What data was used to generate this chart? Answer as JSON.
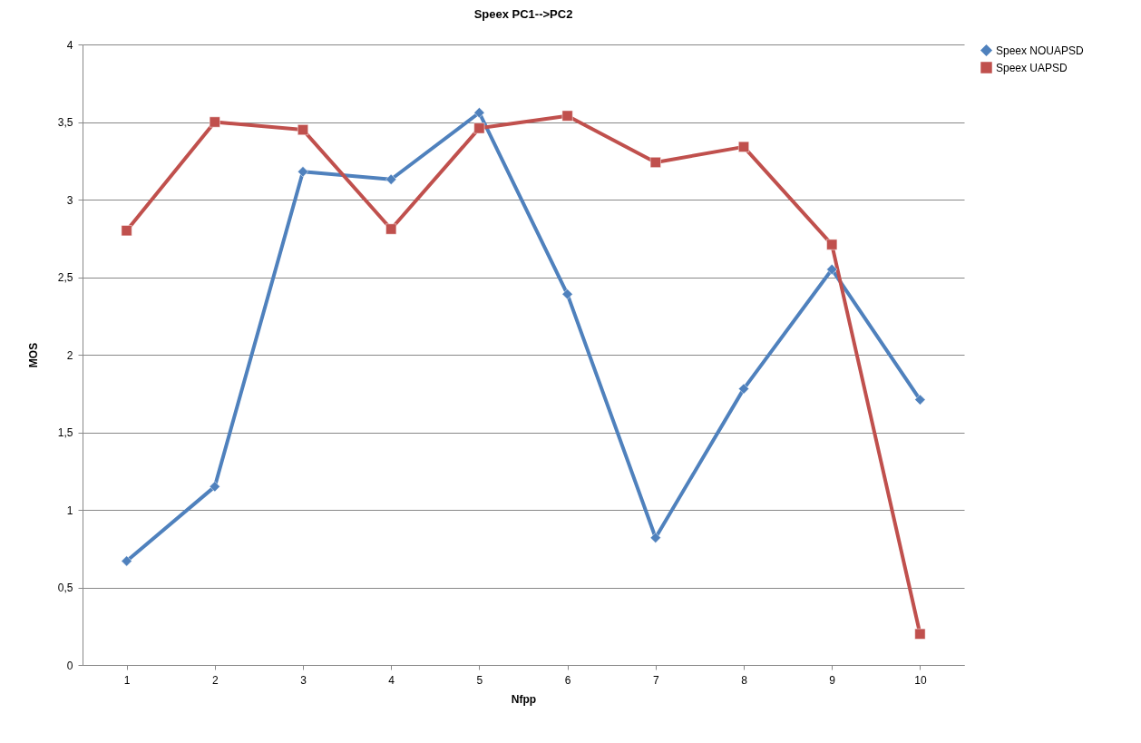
{
  "chart_data": {
    "type": "line",
    "title": "Speex PC1-->PC2",
    "xlabel": "Nfpp",
    "ylabel": "MOS",
    "categories": [
      "1",
      "2",
      "3",
      "4",
      "5",
      "6",
      "7",
      "8",
      "9",
      "10"
    ],
    "series": [
      {
        "name": "Speex NOUAPSD",
        "color": "#4f81bd",
        "marker": "diamond",
        "values": [
          0.67,
          1.15,
          3.18,
          3.13,
          3.56,
          2.39,
          0.82,
          1.78,
          2.55,
          1.71
        ]
      },
      {
        "name": "Speex UAPSD",
        "color": "#c0504d",
        "marker": "square",
        "values": [
          2.8,
          3.5,
          3.45,
          2.81,
          3.46,
          3.54,
          3.24,
          3.34,
          2.71,
          0.2
        ]
      }
    ],
    "ylim": [
      0,
      4
    ],
    "yticks": [
      0,
      {
        "value": 0.5,
        "label": "0,5"
      },
      1,
      {
        "value": 1.5,
        "label": "1,5"
      },
      2,
      {
        "value": 2.5,
        "label": "2,5"
      },
      3,
      {
        "value": 3.5,
        "label": "3,5"
      },
      4
    ],
    "grid": "y",
    "legend": "right",
    "line_style": "solid"
  }
}
